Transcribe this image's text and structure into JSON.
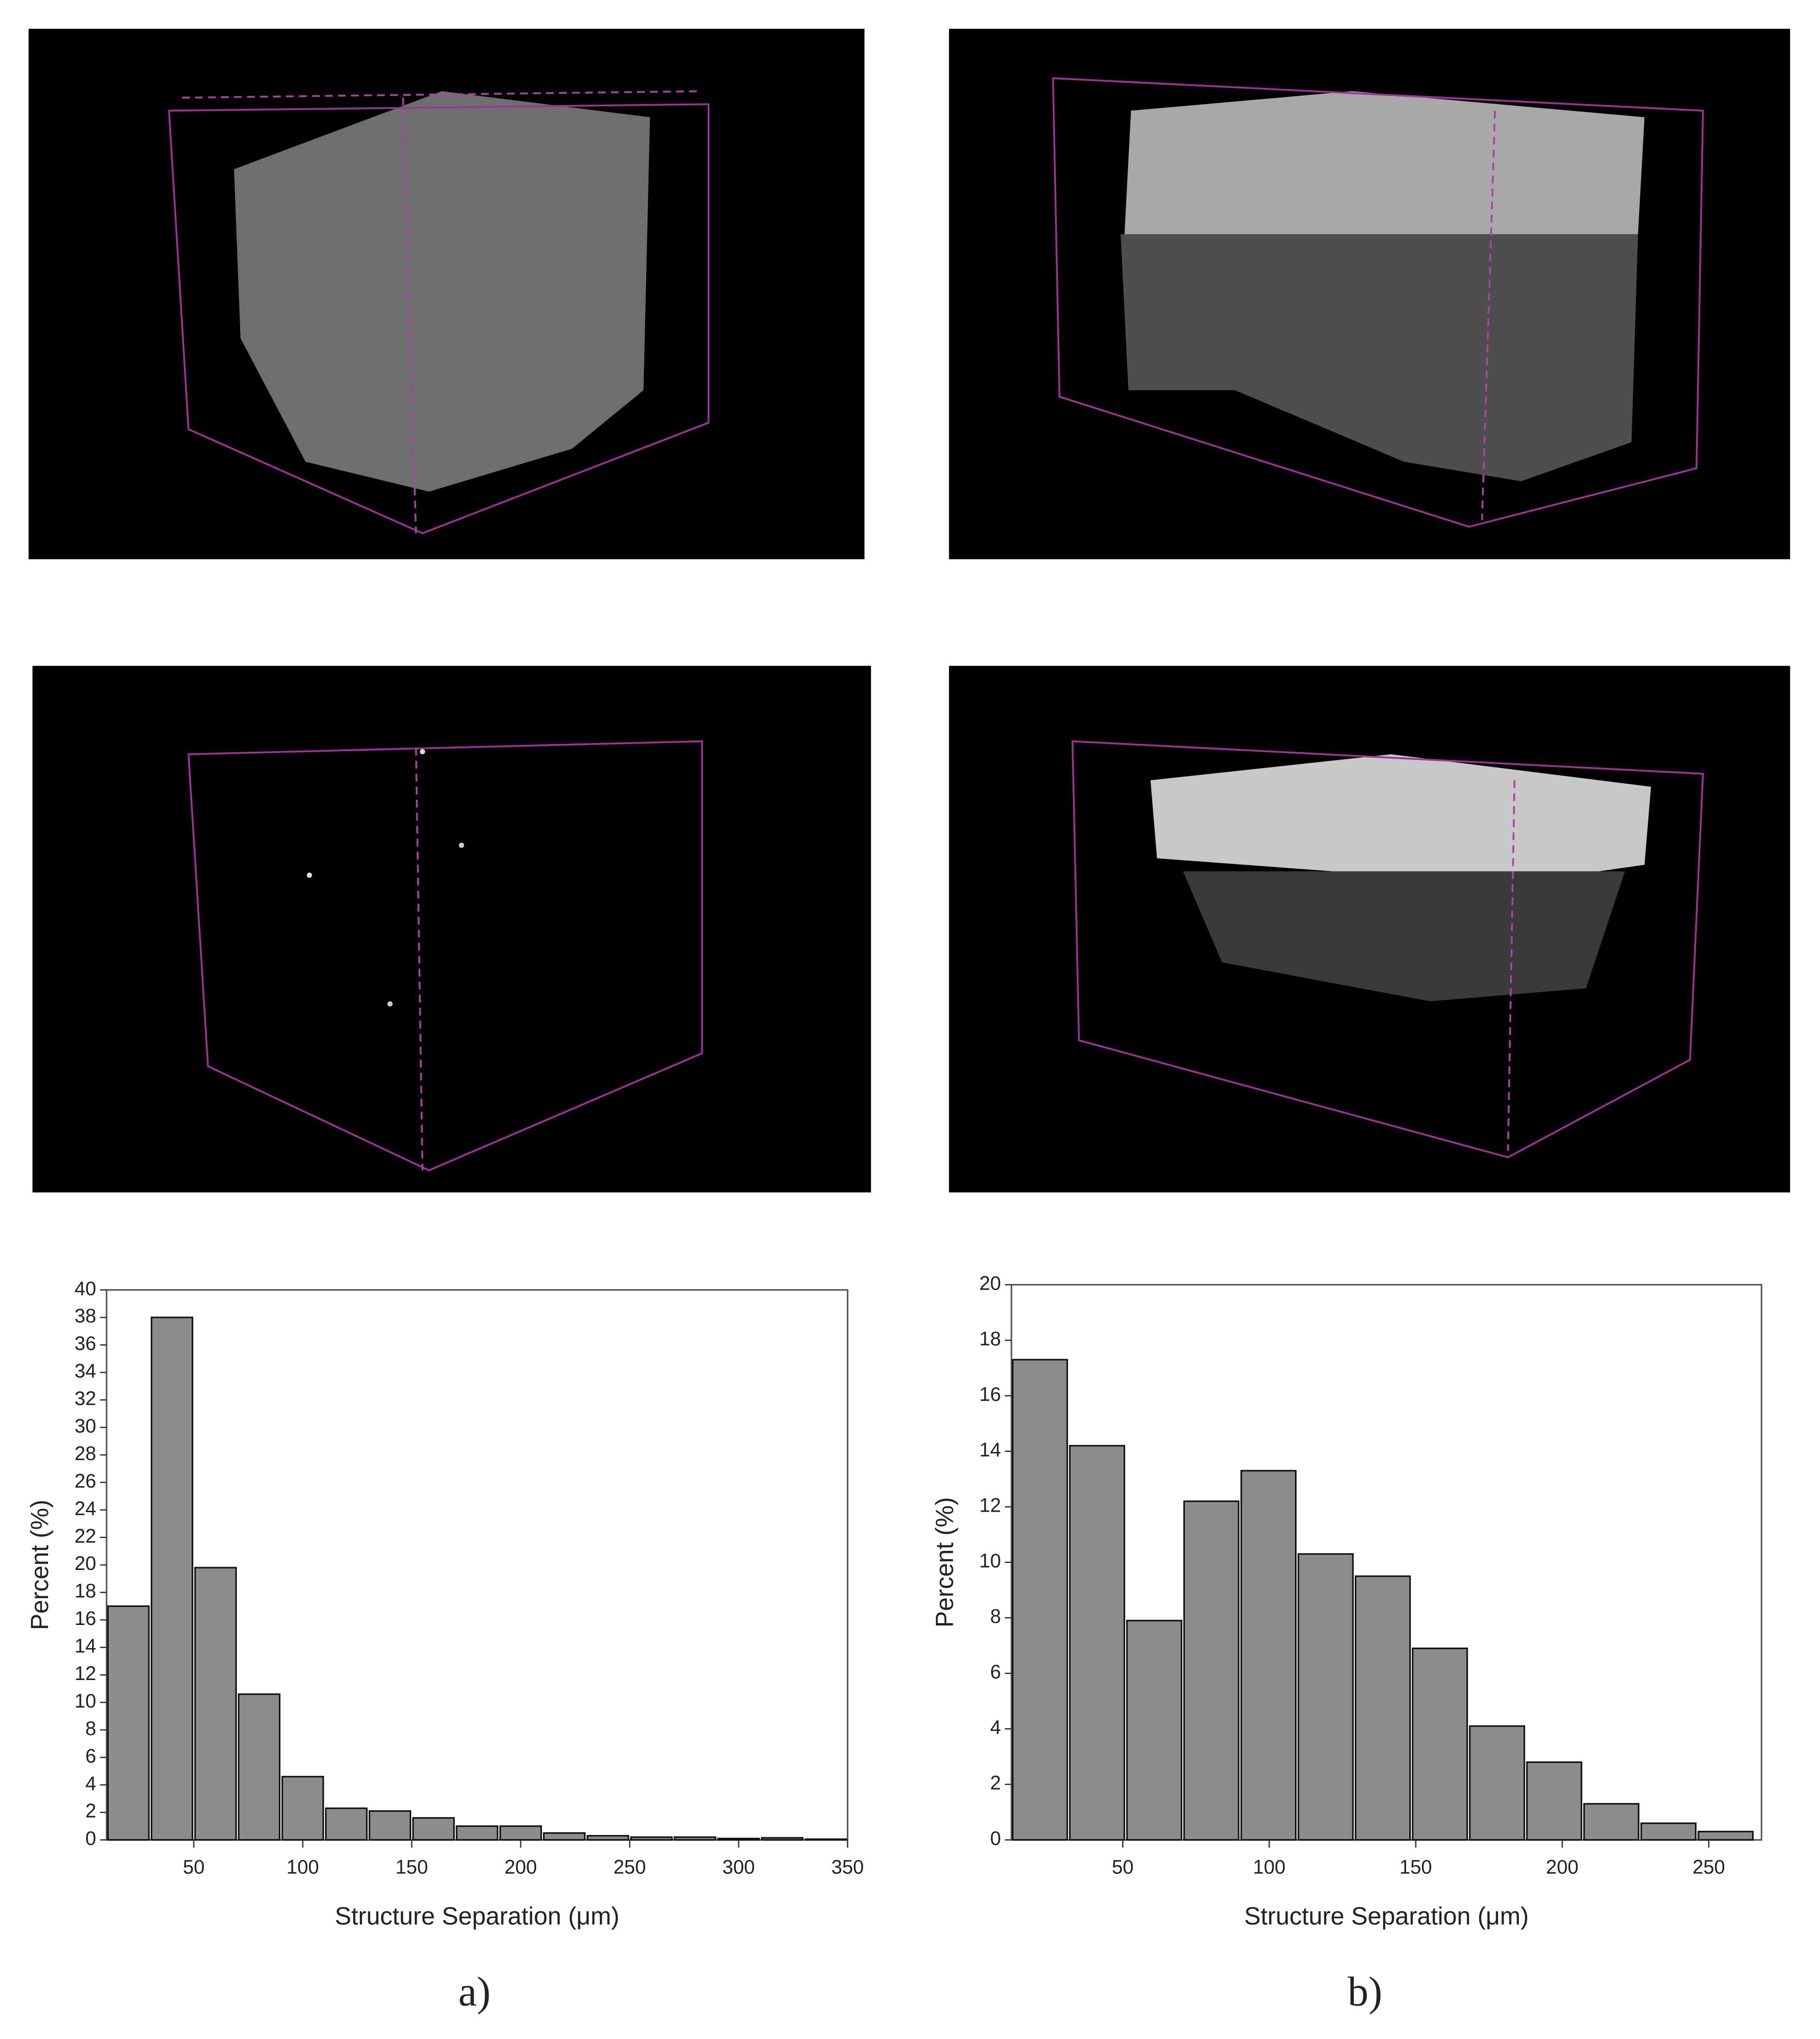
{
  "chart_data": [
    {
      "type": "histogram",
      "caption": "a)",
      "x_label": "Structure Separation (μm)",
      "y_label": "Percent (%)",
      "bins": [
        10,
        30,
        50,
        70,
        90,
        110,
        130,
        150,
        170,
        190,
        210,
        230,
        250,
        270,
        290,
        310,
        330,
        350
      ],
      "values": [
        17,
        38,
        19.8,
        10.6,
        4.6,
        2.3,
        2.1,
        1.6,
        1.0,
        1.0,
        0.5,
        0.3,
        0.2,
        0.2,
        0.1,
        0.15,
        0.05
      ],
      "color": "#8c8c8c",
      "xlim": [
        10,
        350
      ],
      "xticks": [
        50,
        100,
        150,
        200,
        250,
        300,
        350
      ],
      "ylim": [
        0,
        40
      ],
      "yticks": [
        0,
        2,
        4,
        6,
        8,
        10,
        12,
        14,
        16,
        18,
        20,
        22,
        24,
        26,
        28,
        30,
        32,
        34,
        36,
        38,
        40
      ]
    },
    {
      "type": "histogram",
      "caption": "b)",
      "x_label": "Structure Separation (μm)",
      "y_label": "Percent (%)",
      "bins": [
        12,
        31.5,
        51,
        70.5,
        90,
        109.5,
        129,
        148.5,
        168,
        187.5,
        207,
        226.5,
        246,
        265.5
      ],
      "values": [
        17.3,
        14.2,
        7.9,
        12.2,
        13.3,
        10.3,
        9.5,
        6.9,
        4.1,
        2.8,
        1.3,
        0.6,
        0.3
      ],
      "color": "#8c8c8c",
      "xlim": [
        12,
        268
      ],
      "xticks": [
        50,
        100,
        150,
        200,
        250
      ],
      "ylim": [
        0,
        20
      ],
      "yticks": [
        0,
        2,
        4,
        6,
        8,
        10,
        12,
        14,
        16,
        18,
        20
      ]
    }
  ]
}
